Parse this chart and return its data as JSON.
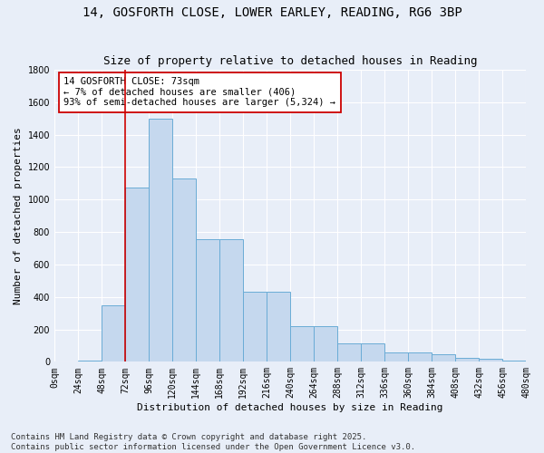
{
  "title": "14, GOSFORTH CLOSE, LOWER EARLEY, READING, RG6 3BP",
  "subtitle": "Size of property relative to detached houses in Reading",
  "xlabel": "Distribution of detached houses by size in Reading",
  "ylabel": "Number of detached properties",
  "bin_edges": [
    0,
    24,
    48,
    72,
    96,
    120,
    144,
    168,
    192,
    216,
    240,
    264,
    288,
    312,
    336,
    360,
    384,
    408,
    432,
    456,
    480
  ],
  "bar_heights": [
    0,
    10,
    350,
    1075,
    1500,
    1130,
    755,
    755,
    430,
    430,
    220,
    220,
    115,
    115,
    60,
    58,
    45,
    22,
    18,
    5
  ],
  "bar_color": "#c5d8ee",
  "bar_edgecolor": "#6aacd6",
  "bg_color": "#e8eef8",
  "grid_color": "#ffffff",
  "vline_x": 72,
  "vline_color": "#cc0000",
  "annotation_text": "14 GOSFORTH CLOSE: 73sqm\n← 7% of detached houses are smaller (406)\n93% of semi-detached houses are larger (5,324) →",
  "annotation_box_edgecolor": "#cc0000",
  "annotation_box_facecolor": "#ffffff",
  "ylim": [
    0,
    1800
  ],
  "yticks": [
    0,
    200,
    400,
    600,
    800,
    1000,
    1200,
    1400,
    1600,
    1800
  ],
  "footnote": "Contains HM Land Registry data © Crown copyright and database right 2025.\nContains public sector information licensed under the Open Government Licence v3.0.",
  "title_fontsize": 10,
  "subtitle_fontsize": 9,
  "axis_label_fontsize": 8,
  "tick_fontsize": 7,
  "annotation_fontsize": 7.5,
  "footnote_fontsize": 6.5
}
